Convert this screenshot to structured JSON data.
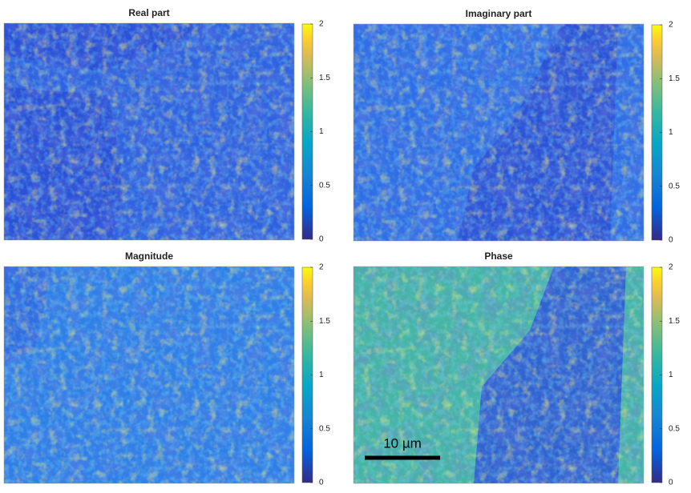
{
  "chart_data": [
    {
      "type": "heatmap",
      "title": "Real part",
      "clim": [
        0,
        2
      ],
      "cticks": [
        0,
        0.5,
        1,
        1.5,
        2
      ]
    },
    {
      "type": "heatmap",
      "title": "Imaginary part",
      "clim": [
        0,
        2
      ],
      "cticks": [
        0,
        0.5,
        1,
        1.5,
        2
      ]
    },
    {
      "type": "heatmap",
      "title": "Magnitude",
      "clim": [
        0,
        2
      ],
      "cticks": [
        0,
        0.5,
        1,
        1.5,
        2
      ]
    },
    {
      "type": "heatmap",
      "title": "Phase",
      "clim": [
        0,
        2
      ],
      "cticks": [
        0,
        0.5,
        1,
        1.5,
        2
      ],
      "annotation": "10 µm"
    }
  ]
}
